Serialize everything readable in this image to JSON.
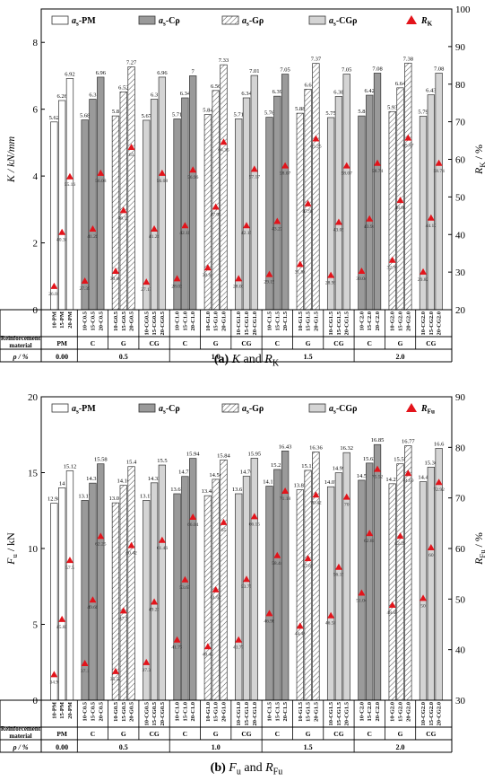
{
  "colors": {
    "PM": "#ffffff",
    "C": "#9a9a9a",
    "G": "#ffffff",
    "CG": "#d4d4d4",
    "marker": "#e3141b"
  },
  "table": {
    "row1_label": "Reinforcement material",
    "row2_label": "ρ / %",
    "materials": [
      "PM",
      "C",
      "G",
      "CG",
      "C",
      "G",
      "CG",
      "C",
      "G",
      "CG",
      "C",
      "G",
      "CG"
    ],
    "ratios": [
      "0.00",
      "0.5",
      "1.0",
      "1.5",
      "2.0"
    ]
  },
  "chart_data": [
    {
      "type": "bar",
      "caption_letter": "(a)",
      "caption_text": "K and R",
      "caption_sub": "K",
      "ylabel_left": "K / kN/mm",
      "ylabel_right": "R",
      "ylabel_right_sub": "K",
      "ylabel_right_unit": " / %",
      "ylim_left": [
        0,
        9
      ],
      "ylim_right": [
        20,
        100
      ],
      "yticks_left": [
        "0",
        "2",
        "4",
        "6",
        "8"
      ],
      "yticks_right": [
        "20",
        "30",
        "40",
        "50",
        "60",
        "70",
        "80",
        "90",
        "100"
      ],
      "legend": [
        {
          "key": "PM",
          "label": "a",
          "sub": "s",
          "suffix": "-PM"
        },
        {
          "key": "C",
          "label": "a",
          "sub": "s",
          "suffix": "-Cρ"
        },
        {
          "key": "G",
          "label": "a",
          "sub": "s",
          "suffix": "-Gρ"
        },
        {
          "key": "CG",
          "label": "a",
          "sub": "s",
          "suffix": "-CGρ"
        },
        {
          "key": "marker",
          "label": "R",
          "sub": "K",
          "suffix": ""
        }
      ],
      "groups": [
        {
          "type": "PM",
          "labels": [
            "10-PM",
            "15-PM",
            "20-PM"
          ],
          "values": [
            5.62,
            6.26,
            6.92
          ],
          "ratios": [
            26.01,
            40.36,
            55.16
          ]
        },
        {
          "type": "C",
          "labels": [
            "10-C0.5",
            "15-C0.5",
            "20-C0.5"
          ],
          "values": [
            5.68,
            6.3,
            6.96
          ],
          "ratios": [
            27.39,
            41.26,
            56.08
          ]
        },
        {
          "type": "G",
          "labels": [
            "10-G0.5",
            "15-G0.5",
            "20-G0.5"
          ],
          "values": [
            5.8,
            6.52,
            7.27
          ],
          "ratios": [
            30.04,
            46.19,
            63.0
          ]
        },
        {
          "type": "CG",
          "labels": [
            "10-CG0.5",
            "15-CG0.5",
            "20-CG0.5"
          ],
          "values": [
            5.67,
            6.3,
            6.96
          ],
          "ratios": [
            27.13,
            41.26,
            56.08
          ]
        },
        {
          "type": "C",
          "labels": [
            "10-C1.0",
            "15-C1.0",
            "20-C1.0"
          ],
          "values": [
            5.71,
            6.34,
            7.0
          ],
          "ratios": [
            28.03,
            42.16,
            56.96
          ]
        },
        {
          "type": "G",
          "labels": [
            "10-G1.0",
            "15-G1.0",
            "20-G1.0"
          ],
          "values": [
            5.84,
            6.56,
            7.33
          ],
          "ratios": [
            30.94,
            47.09,
            64.35
          ]
        },
        {
          "type": "CG",
          "labels": [
            "10-CG1.0",
            "15-CG1.0",
            "20-CG1.0"
          ],
          "values": [
            5.71,
            6.34,
            7.01
          ],
          "ratios": [
            28.03,
            42.15,
            57.17
          ]
        },
        {
          "type": "C",
          "labels": [
            "10-C1.5",
            "15-C1.5",
            "20-C1.5"
          ],
          "values": [
            5.76,
            6.39,
            7.05
          ],
          "ratios": [
            29.15,
            43.27,
            58.07
          ]
        },
        {
          "type": "G",
          "labels": [
            "10-G1.5",
            "15-G1.5",
            "20-G1.5"
          ],
          "values": [
            5.88,
            6.6,
            7.37
          ],
          "ratios": [
            31.84,
            47.98,
            65.25
          ]
        },
        {
          "type": "CG",
          "labels": [
            "10-CG1.5",
            "15-CG1.5",
            "20-CG1.5"
          ],
          "values": [
            5.75,
            6.38,
            7.05
          ],
          "ratios": [
            28.93,
            43.05,
            58.07
          ]
        },
        {
          "type": "C",
          "labels": [
            "10-C2.0",
            "15-C2.0",
            "20-C2.0"
          ],
          "values": [
            5.8,
            6.42,
            7.08
          ],
          "ratios": [
            30.04,
            43.94,
            58.74
          ]
        },
        {
          "type": "G",
          "labels": [
            "10-G2.0",
            "15-G2.0",
            "20-G2.0"
          ],
          "values": [
            5.93,
            6.64,
            7.38
          ],
          "ratios": [
            32.96,
            48.88,
            65.47
          ]
        },
        {
          "type": "CG",
          "labels": [
            "10-CG2.0",
            "15-CG2.0",
            "20-CG2.0"
          ],
          "values": [
            5.79,
            6.43,
            7.08
          ],
          "ratios": [
            29.82,
            44.17,
            58.74
          ]
        }
      ]
    },
    {
      "type": "bar",
      "caption_letter": "(b)",
      "caption_text": "F and R",
      "caption_sub": "Fu",
      "caption_sub_first": "u",
      "ylabel_left": "F",
      "ylabel_left_sub": "u",
      "ylabel_left_unit": " / kN",
      "ylabel_right": "R",
      "ylabel_right_sub": "Fu",
      "ylabel_right_unit": " / %",
      "ylim_left": [
        0,
        20
      ],
      "ylim_right": [
        30,
        90
      ],
      "yticks_left": [
        "0",
        "5",
        "10",
        "15",
        "20"
      ],
      "yticks_right": [
        "30",
        "40",
        "50",
        "60",
        "70",
        "80",
        "90"
      ],
      "legend": [
        {
          "key": "PM",
          "label": "a",
          "sub": "s",
          "suffix": "-PM"
        },
        {
          "key": "C",
          "label": "a",
          "sub": "s",
          "suffix": "-Cρ"
        },
        {
          "key": "G",
          "label": "a",
          "sub": "s",
          "suffix": "-Gρ"
        },
        {
          "key": "CG",
          "label": "a",
          "sub": "s",
          "suffix": "-CGρ"
        },
        {
          "key": "marker",
          "label": "R",
          "sub": "Fu",
          "suffix": ""
        }
      ],
      "groups": [
        {
          "type": "PM",
          "labels": [
            "10-PM",
            "15-PM",
            "20-PM"
          ],
          "values": [
            12.98,
            14.0,
            15.12
          ],
          "ratios": [
            34.9,
            45.83,
            57.5
          ]
        },
        {
          "type": "C",
          "labels": [
            "10-C0.5",
            "15-C0.5",
            "20-C0.5"
          ],
          "values": [
            13.17,
            14.31,
            15.58
          ],
          "ratios": [
            37.1,
            49.66,
            62.25
          ]
        },
        {
          "type": "G",
          "labels": [
            "10-G0.5",
            "15-G0.5",
            "20-G0.5"
          ],
          "values": [
            13.01,
            14.16,
            15.4
          ],
          "ratios": [
            35.52,
            47.5,
            60.42
          ]
        },
        {
          "type": "CG",
          "labels": [
            "10-CG0.5",
            "15-CG0.5",
            "20-CG0.5"
          ],
          "values": [
            13.17,
            14.33,
            15.5
          ],
          "ratios": [
            37.3,
            49.27,
            61.46
          ]
        },
        {
          "type": "C",
          "labels": [
            "10-C1.0",
            "15-C1.0",
            "20-C1.0"
          ],
          "values": [
            13.61,
            14.75,
            15.94
          ],
          "ratios": [
            41.77,
            53.65,
            66.04
          ]
        },
        {
          "type": "G",
          "labels": [
            "10-G1.0",
            "15-G1.0",
            "20-G1.0"
          ],
          "values": [
            13.48,
            14.56,
            15.84
          ],
          "ratios": [
            40.42,
            51.67,
            65.0
          ]
        },
        {
          "type": "CG",
          "labels": [
            "10-CG1.0",
            "15-CG1.0",
            "20-CG1.0"
          ],
          "values": [
            13.61,
            14.76,
            15.95
          ],
          "ratios": [
            41.77,
            53.75,
            66.15
          ]
        },
        {
          "type": "C",
          "labels": [
            "10-C1.5",
            "15-C1.5",
            "20-C1.5"
          ],
          "values": [
            14.11,
            15.21,
            16.43
          ],
          "ratios": [
            46.98,
            58.44,
            71.18
          ]
        },
        {
          "type": "G",
          "labels": [
            "10-G1.5",
            "15-G1.5",
            "20-G1.5"
          ],
          "values": [
            13.87,
            15.15,
            16.36
          ],
          "ratios": [
            44.48,
            57.85,
            70.42
          ]
        },
        {
          "type": "CG",
          "labels": [
            "10-CG1.5",
            "15-CG1.5",
            "20-CG1.5"
          ],
          "values": [
            14.07,
            14.99,
            16.32
          ],
          "ratios": [
            46.56,
            56.15,
            70.0
          ]
        },
        {
          "type": "C",
          "labels": [
            "10-C2.0",
            "15-C2.0",
            "20-C2.0"
          ],
          "values": [
            14.5,
            15.63,
            16.85
          ],
          "ratios": [
            51.04,
            62.81,
            75.52
          ]
        },
        {
          "type": "G",
          "labels": [
            "10-G2.0",
            "15-G2.0",
            "20-G2.0"
          ],
          "values": [
            14.27,
            15.58,
            16.77
          ],
          "ratios": [
            48.65,
            62.29,
            74.69
          ]
        },
        {
          "type": "CG",
          "labels": [
            "10-CG2.0",
            "15-CG2.0",
            "20-CG2.0"
          ],
          "values": [
            14.4,
            15.36,
            16.6
          ],
          "ratios": [
            50.0,
            60.0,
            72.92
          ]
        }
      ]
    }
  ]
}
